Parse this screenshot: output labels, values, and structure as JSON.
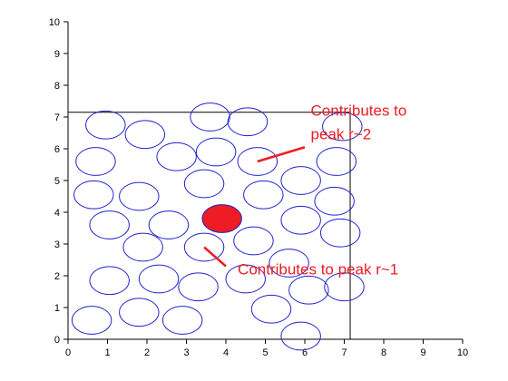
{
  "chart_data": {
    "type": "scatter",
    "title": "",
    "xlabel": "",
    "ylabel": "",
    "xlim": [
      0,
      10
    ],
    "ylim": [
      0,
      10
    ],
    "x_ticks": [
      "0",
      "1",
      "2",
      "3",
      "4",
      "5",
      "6",
      "7",
      "8",
      "9",
      "10"
    ],
    "y_ticks": [
      "0",
      "1",
      "2",
      "3",
      "4",
      "5",
      "6",
      "7",
      "8",
      "9",
      "10"
    ],
    "grid": false,
    "legend": "none",
    "box": {
      "x": [
        0,
        7.15
      ],
      "y": [
        0,
        7.15
      ]
    },
    "particle_radius": 0.5,
    "particle_color": "#2222cc",
    "highlight_color": "#ee1c24",
    "highlight_particle": {
      "x": 3.9,
      "y": 3.8
    },
    "particles": [
      {
        "x": 0.95,
        "y": 6.75
      },
      {
        "x": 1.95,
        "y": 6.45
      },
      {
        "x": 3.6,
        "y": 7.0
      },
      {
        "x": 4.55,
        "y": 6.85
      },
      {
        "x": 6.95,
        "y": 6.7
      },
      {
        "x": 0.7,
        "y": 5.6
      },
      {
        "x": 2.75,
        "y": 5.75
      },
      {
        "x": 3.75,
        "y": 5.9
      },
      {
        "x": 4.8,
        "y": 5.6
      },
      {
        "x": 6.8,
        "y": 5.6
      },
      {
        "x": 0.65,
        "y": 4.55
      },
      {
        "x": 1.8,
        "y": 4.5
      },
      {
        "x": 3.45,
        "y": 4.9
      },
      {
        "x": 4.95,
        "y": 4.55
      },
      {
        "x": 5.9,
        "y": 5.0
      },
      {
        "x": 6.75,
        "y": 4.35
      },
      {
        "x": 1.05,
        "y": 3.6
      },
      {
        "x": 2.55,
        "y": 3.6
      },
      {
        "x": 5.9,
        "y": 3.75
      },
      {
        "x": 6.9,
        "y": 3.35
      },
      {
        "x": 1.9,
        "y": 2.9
      },
      {
        "x": 3.45,
        "y": 2.9
      },
      {
        "x": 4.7,
        "y": 3.1
      },
      {
        "x": 5.6,
        "y": 2.4
      },
      {
        "x": 1.05,
        "y": 1.85
      },
      {
        "x": 2.3,
        "y": 1.9
      },
      {
        "x": 3.3,
        "y": 1.65
      },
      {
        "x": 4.5,
        "y": 1.9
      },
      {
        "x": 6.1,
        "y": 1.55
      },
      {
        "x": 7.0,
        "y": 1.65
      },
      {
        "x": 0.6,
        "y": 0.6
      },
      {
        "x": 1.8,
        "y": 0.85
      },
      {
        "x": 2.9,
        "y": 0.6
      },
      {
        "x": 5.15,
        "y": 0.95
      },
      {
        "x": 5.9,
        "y": 0.1
      }
    ],
    "annotations": [
      {
        "text": "Contributes to",
        "line2": "peak r~2",
        "text_x": 6.15,
        "text_y": 7.05,
        "line": {
          "x1": 4.8,
          "y1": 5.6,
          "x2": 6.0,
          "y2": 6.05
        }
      },
      {
        "text": "Contributes to peak r~1",
        "text_x": 4.3,
        "text_y": 2.05,
        "line": {
          "x1": 3.45,
          "y1": 2.9,
          "x2": 4.0,
          "y2": 2.3
        }
      }
    ]
  }
}
